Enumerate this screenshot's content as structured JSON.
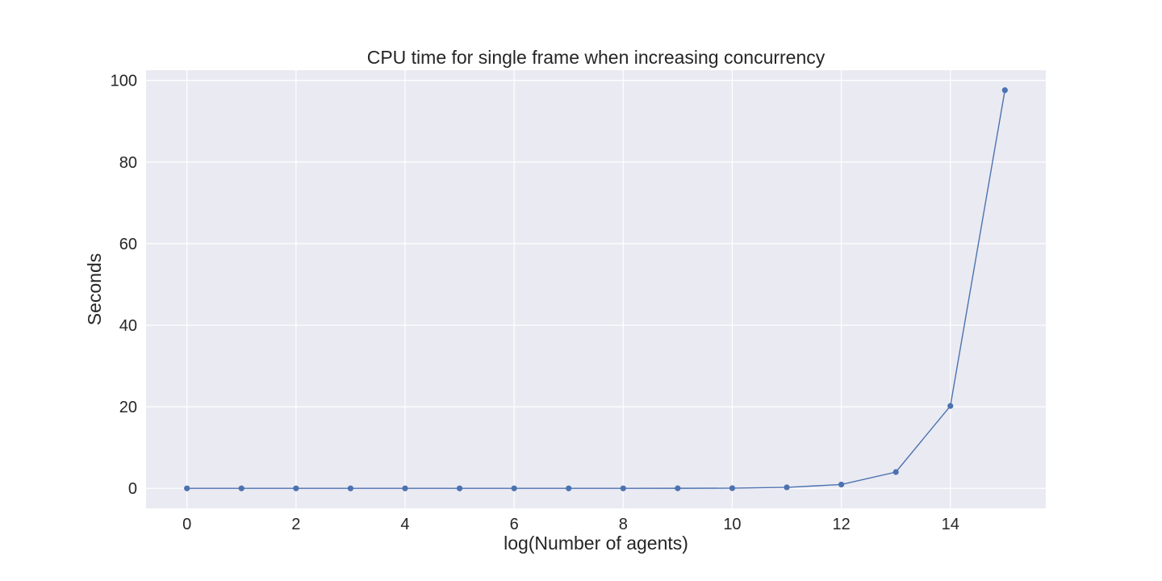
{
  "chart_data": {
    "type": "line",
    "title": "CPU time for single frame when increasing concurrency",
    "xlabel": "log(Number of agents)",
    "ylabel": "Seconds",
    "xlim": [
      -0.75,
      15.75
    ],
    "ylim": [
      -4.9,
      102.5
    ],
    "xticks": [
      0,
      2,
      4,
      6,
      8,
      10,
      12,
      14
    ],
    "yticks": [
      0,
      20,
      40,
      60,
      80,
      100
    ],
    "grid": true,
    "background": "#eaeaf2",
    "grid_color": "#ffffff",
    "series": [
      {
        "color": "#4c72b0",
        "marker": "circle",
        "x": [
          0,
          1,
          2,
          3,
          4,
          5,
          6,
          7,
          8,
          9,
          10,
          11,
          12,
          13,
          14,
          15
        ],
        "y": [
          0.0,
          0.0,
          0.0,
          0.0,
          0.0,
          0.0,
          0.0,
          0.0,
          0.0,
          0.02,
          0.05,
          0.25,
          0.95,
          4.0,
          20.2,
          97.6
        ]
      }
    ]
  }
}
